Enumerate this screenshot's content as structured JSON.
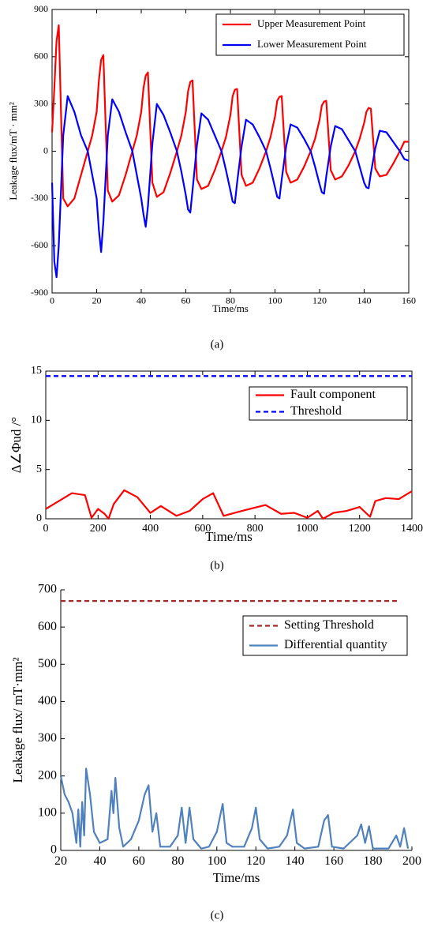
{
  "chart_data": [
    {
      "type": "line",
      "xlabel": "Time/ms",
      "ylabel": "Leakage flux/mT · mm²",
      "caption": "(a)",
      "xlim": [
        0,
        160
      ],
      "xticks": [
        0,
        20,
        40,
        60,
        80,
        100,
        120,
        140,
        160
      ],
      "ylim": [
        -900,
        900
      ],
      "yticks": [
        -900,
        -600,
        -300,
        0,
        300,
        600,
        900
      ],
      "box": true,
      "legend": "upper right",
      "series": [
        {
          "name": "Upper Measurement Point",
          "color": "#ff0000",
          "dashed": false,
          "x": [
            0,
            1,
            2,
            3,
            5,
            7,
            10,
            13,
            16,
            18,
            20,
            21,
            22,
            23,
            25,
            27,
            30,
            33,
            36,
            38,
            40,
            41,
            42,
            43,
            45,
            47,
            50,
            53,
            56,
            58,
            60,
            61,
            62,
            63,
            65,
            67,
            70,
            73,
            76,
            78,
            80,
            81,
            82,
            83,
            85,
            87,
            90,
            93,
            96,
            98,
            100,
            101,
            102,
            103,
            105,
            107,
            110,
            113,
            116,
            118,
            120,
            121,
            122,
            123,
            125,
            127,
            130,
            133,
            136,
            138,
            140,
            141,
            142,
            143,
            145,
            147,
            150,
            153,
            156,
            158,
            160
          ],
          "values": [
            120,
            400,
            700,
            800,
            -300,
            -350,
            -300,
            -150,
            0,
            100,
            250,
            450,
            580,
            610,
            -250,
            -320,
            -280,
            -150,
            0,
            100,
            250,
            400,
            480,
            500,
            -200,
            -290,
            -260,
            -140,
            0,
            100,
            250,
            380,
            440,
            450,
            -180,
            -240,
            -220,
            -120,
            0,
            90,
            230,
            350,
            390,
            395,
            -150,
            -220,
            -200,
            -110,
            0,
            90,
            220,
            320,
            345,
            350,
            -130,
            -200,
            -180,
            -100,
            0,
            80,
            200,
            290,
            315,
            320,
            -120,
            -180,
            -160,
            -90,
            0,
            80,
            180,
            250,
            275,
            270,
            -110,
            -160,
            -150,
            -80,
            0,
            60,
            60
          ]
        },
        {
          "name": "Lower Measurement Point",
          "color": "#0000ff",
          "dashed": false,
          "x": [
            0,
            1,
            2,
            3,
            5,
            7,
            10,
            13,
            16,
            18,
            20,
            21,
            22,
            23,
            25,
            27,
            30,
            33,
            36,
            38,
            40,
            41,
            42,
            43,
            45,
            47,
            50,
            53,
            56,
            58,
            60,
            61,
            62,
            63,
            65,
            67,
            70,
            73,
            76,
            78,
            80,
            81,
            82,
            83,
            85,
            87,
            90,
            93,
            96,
            98,
            100,
            101,
            102,
            103,
            105,
            107,
            110,
            113,
            116,
            118,
            120,
            121,
            122,
            123,
            125,
            127,
            130,
            133,
            136,
            138,
            140,
            141,
            142,
            143,
            145,
            147,
            150,
            153,
            156,
            158,
            160
          ],
          "values": [
            -200,
            -700,
            -800,
            -600,
            100,
            350,
            250,
            100,
            0,
            -150,
            -300,
            -500,
            -640,
            -450,
            100,
            330,
            250,
            120,
            0,
            -150,
            -300,
            -400,
            -480,
            -350,
            50,
            300,
            230,
            120,
            0,
            -130,
            -280,
            -370,
            -390,
            -250,
            40,
            240,
            200,
            100,
            0,
            -120,
            -250,
            -320,
            -330,
            -200,
            30,
            200,
            170,
            90,
            0,
            -110,
            -230,
            -290,
            -300,
            -180,
            30,
            170,
            150,
            80,
            0,
            -100,
            -210,
            -260,
            -270,
            -160,
            30,
            160,
            140,
            70,
            0,
            -100,
            -200,
            -230,
            -235,
            -140,
            20,
            130,
            120,
            60,
            0,
            -50,
            -60
          ]
        }
      ]
    },
    {
      "type": "line",
      "xlabel": "Time/ms",
      "ylabel": "Δ∠Φud /°",
      "caption": "(b)",
      "xlim": [
        0,
        1400
      ],
      "xticks": [
        0,
        200,
        400,
        600,
        800,
        1000,
        1200,
        1400
      ],
      "ylim": [
        0,
        15
      ],
      "yticks": [
        0,
        5,
        10,
        15
      ],
      "box": true,
      "legend": "upper right",
      "series": [
        {
          "name": "Fault component",
          "color": "#ff0000",
          "dashed": false,
          "x": [
            0,
            50,
            100,
            150,
            175,
            200,
            225,
            240,
            260,
            300,
            350,
            400,
            440,
            500,
            550,
            600,
            640,
            680,
            750,
            840,
            900,
            950,
            1000,
            1040,
            1060,
            1100,
            1150,
            1200,
            1240,
            1260,
            1300,
            1350,
            1400
          ],
          "values": [
            1,
            1.8,
            2.6,
            2.4,
            0.1,
            1,
            0.5,
            0,
            1.5,
            2.9,
            2.2,
            0.6,
            1.3,
            0.3,
            0.8,
            2,
            2.6,
            0.3,
            0.8,
            1.4,
            0.5,
            0.6,
            0.1,
            0.8,
            0,
            0.6,
            0.8,
            1.2,
            0.2,
            1.8,
            2.1,
            2,
            2.8
          ]
        },
        {
          "name": "Threshold",
          "color": "#0000ff",
          "dashed": true,
          "x": [
            0,
            1400
          ],
          "values": [
            14.5,
            14.5
          ]
        }
      ]
    },
    {
      "type": "line",
      "xlabel": "Time/ms",
      "ylabel": "Leakage flux/ mT·mm²",
      "caption": "(c)",
      "xlim": [
        20,
        200
      ],
      "xticks": [
        20,
        40,
        60,
        80,
        100,
        120,
        140,
        160,
        180,
        200
      ],
      "ylim": [
        0,
        700
      ],
      "yticks": [
        0,
        100,
        200,
        300,
        400,
        500,
        600,
        700
      ],
      "box": false,
      "legend": "upper right",
      "series": [
        {
          "name": "Setting Threshold",
          "color": "#a52a2a",
          "dashed": true,
          "x": [
            20,
            193
          ],
          "values": [
            670,
            670
          ]
        },
        {
          "name": "Differential quantity",
          "color": "#4f81bd",
          "dashed": false,
          "x": [
            20,
            22,
            24,
            26,
            28,
            29,
            30,
            31,
            32,
            33,
            35,
            37,
            40,
            44,
            46,
            47,
            48,
            50,
            52,
            56,
            60,
            63,
            65,
            67,
            69,
            71,
            76,
            80,
            82,
            84,
            86,
            88,
            92,
            96,
            100,
            103,
            105,
            108,
            114,
            118,
            120,
            122,
            126,
            132,
            136,
            139,
            141,
            145,
            152,
            155,
            157,
            159,
            165,
            172,
            174,
            176,
            178,
            180,
            188,
            192,
            194,
            196,
            198
          ],
          "values": [
            200,
            150,
            130,
            100,
            20,
            110,
            10,
            130,
            40,
            220,
            150,
            50,
            20,
            30,
            160,
            100,
            195,
            60,
            10,
            30,
            80,
            150,
            175,
            50,
            100,
            10,
            10,
            40,
            115,
            20,
            115,
            30,
            5,
            10,
            50,
            125,
            20,
            10,
            10,
            60,
            115,
            30,
            5,
            10,
            40,
            110,
            20,
            5,
            10,
            80,
            95,
            10,
            5,
            40,
            70,
            20,
            65,
            5,
            5,
            40,
            10,
            60,
            5
          ]
        }
      ]
    }
  ]
}
